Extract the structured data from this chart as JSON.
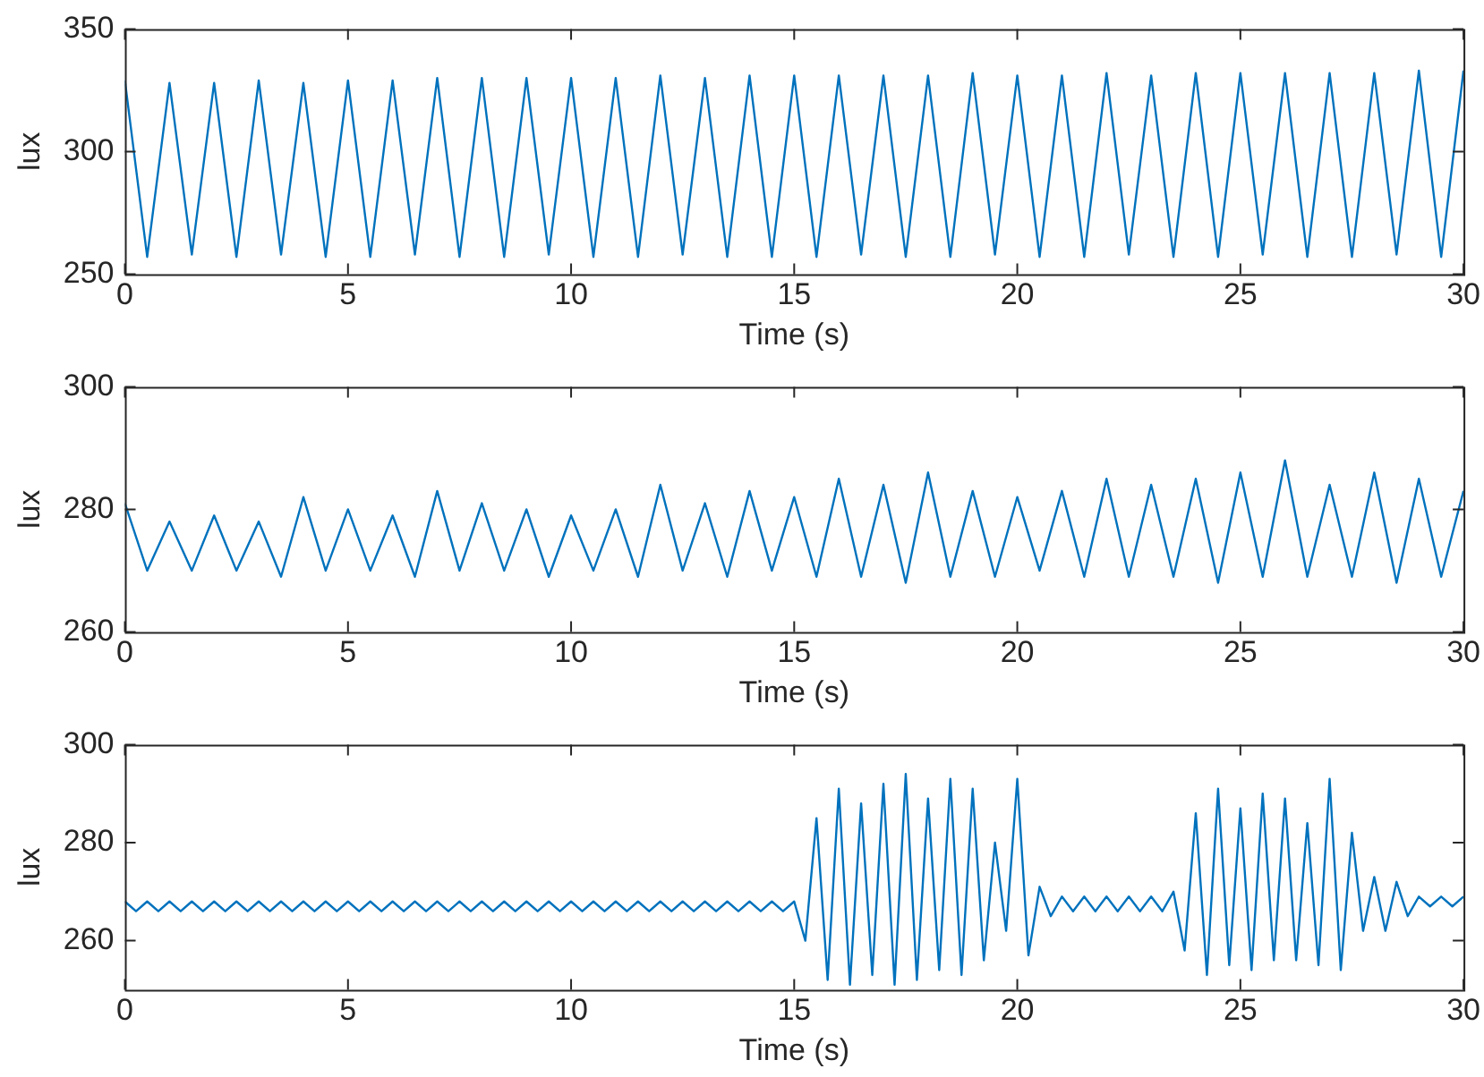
{
  "chart_data": [
    {
      "type": "line",
      "xlabel": "Time (s)",
      "ylabel": "lux",
      "color": "#0072bd",
      "marker": "none",
      "legend": false,
      "x": [
        0,
        0.5,
        1,
        1.5,
        2,
        2.5,
        3,
        3.5,
        4,
        4.5,
        5,
        5.5,
        6,
        6.5,
        7,
        7.5,
        8,
        8.5,
        9,
        9.5,
        10,
        10.5,
        11,
        11.5,
        12,
        12.5,
        13,
        13.5,
        14,
        14.5,
        15,
        15.5,
        16,
        16.5,
        17,
        17.5,
        18,
        18.5,
        19,
        19.5,
        20,
        20.5,
        21,
        21.5,
        22,
        22.5,
        23,
        23.5,
        24,
        24.5,
        25,
        25.5,
        26,
        26.5,
        27,
        27.5,
        28,
        28.5,
        29,
        29.5,
        30
      ],
      "values": [
        329,
        257,
        328,
        258,
        328,
        257,
        329,
        258,
        328,
        257,
        329,
        257,
        329,
        258,
        330,
        257,
        330,
        257,
        330,
        258,
        330,
        257,
        330,
        257,
        331,
        258,
        330,
        257,
        331,
        257,
        331,
        257,
        331,
        258,
        331,
        257,
        331,
        257,
        332,
        258,
        331,
        257,
        331,
        257,
        332,
        258,
        331,
        257,
        332,
        257,
        332,
        258,
        332,
        257,
        332,
        257,
        332,
        258,
        333,
        257,
        333
      ],
      "xlim": [
        0,
        30
      ],
      "xticks": [
        0,
        5,
        10,
        15,
        20,
        25,
        30
      ],
      "ylim": [
        250,
        350
      ],
      "yticks": [
        250,
        300,
        350
      ]
    },
    {
      "type": "line",
      "xlabel": "Time (s)",
      "ylabel": "lux",
      "color": "#0072bd",
      "marker": "none",
      "legend": false,
      "x": [
        0,
        0.5,
        1,
        1.5,
        2,
        2.5,
        3,
        3.5,
        4,
        4.5,
        5,
        5.5,
        6,
        6.5,
        7,
        7.5,
        8,
        8.5,
        9,
        9.5,
        10,
        10.5,
        11,
        11.5,
        12,
        12.5,
        13,
        13.5,
        14,
        14.5,
        15,
        15.5,
        16,
        16.5,
        17,
        17.5,
        18,
        18.5,
        19,
        19.5,
        20,
        20.5,
        21,
        21.5,
        22,
        22.5,
        23,
        23.5,
        24,
        24.5,
        25,
        25.5,
        26,
        26.5,
        27,
        27.5,
        28,
        28.5,
        29,
        29.5,
        30
      ],
      "values": [
        281,
        270,
        278,
        270,
        279,
        270,
        278,
        269,
        282,
        270,
        280,
        270,
        279,
        269,
        283,
        270,
        281,
        270,
        280,
        269,
        279,
        270,
        280,
        269,
        284,
        270,
        281,
        269,
        283,
        270,
        282,
        269,
        285,
        269,
        284,
        268,
        286,
        269,
        283,
        269,
        282,
        270,
        283,
        269,
        285,
        269,
        284,
        269,
        285,
        268,
        286,
        269,
        288,
        269,
        284,
        269,
        286,
        268,
        285,
        269,
        283
      ],
      "xlim": [
        0,
        30
      ],
      "xticks": [
        0,
        5,
        10,
        15,
        20,
        25,
        30
      ],
      "ylim": [
        260,
        300
      ],
      "yticks": [
        260,
        280,
        300
      ]
    },
    {
      "type": "line",
      "xlabel": "Time (s)",
      "ylabel": "lux",
      "color": "#0072bd",
      "marker": "none",
      "legend": false,
      "x": [
        0,
        0.25,
        0.5,
        0.75,
        1,
        1.25,
        1.5,
        1.75,
        2,
        2.25,
        2.5,
        2.75,
        3,
        3.25,
        3.5,
        3.75,
        4,
        4.25,
        4.5,
        4.75,
        5,
        5.25,
        5.5,
        5.75,
        6,
        6.25,
        6.5,
        6.75,
        7,
        7.25,
        7.5,
        7.75,
        8,
        8.25,
        8.5,
        8.75,
        9,
        9.25,
        9.5,
        9.75,
        10,
        10.25,
        10.5,
        10.75,
        11,
        11.25,
        11.5,
        11.75,
        12,
        12.25,
        12.5,
        12.75,
        13,
        13.25,
        13.5,
        13.75,
        14,
        14.25,
        14.5,
        14.75,
        15,
        15.25,
        15.5,
        15.75,
        16,
        16.25,
        16.5,
        16.75,
        17,
        17.25,
        17.5,
        17.75,
        18,
        18.25,
        18.5,
        18.75,
        19,
        19.25,
        19.5,
        19.75,
        20,
        20.25,
        20.5,
        20.75,
        21,
        21.25,
        21.5,
        21.75,
        22,
        22.25,
        22.5,
        22.75,
        23,
        23.25,
        23.5,
        23.75,
        24,
        24.25,
        24.5,
        24.75,
        25,
        25.25,
        25.5,
        25.75,
        26,
        26.25,
        26.5,
        26.75,
        27,
        27.25,
        27.5,
        27.75,
        28,
        28.25,
        28.5,
        28.75,
        29,
        29.25,
        29.5,
        29.75,
        30
      ],
      "values": [
        268,
        266,
        268,
        266,
        268,
        266,
        268,
        266,
        268,
        266,
        268,
        266,
        268,
        266,
        268,
        266,
        268,
        266,
        268,
        266,
        268,
        266,
        268,
        266,
        268,
        266,
        268,
        266,
        268,
        266,
        268,
        266,
        268,
        266,
        268,
        266,
        268,
        266,
        268,
        266,
        268,
        266,
        268,
        266,
        268,
        266,
        268,
        266,
        268,
        266,
        268,
        266,
        268,
        266,
        268,
        266,
        268,
        266,
        268,
        266,
        268,
        260,
        285,
        252,
        291,
        251,
        288,
        253,
        292,
        251,
        294,
        252,
        289,
        254,
        293,
        253,
        291,
        256,
        280,
        262,
        293,
        257,
        271,
        265,
        269,
        266,
        269,
        266,
        269,
        266,
        269,
        266,
        269,
        266,
        270,
        258,
        286,
        253,
        291,
        255,
        287,
        254,
        290,
        256,
        289,
        256,
        284,
        255,
        293,
        254,
        282,
        262,
        273,
        262,
        272,
        265,
        269,
        267,
        269,
        267,
        269
      ],
      "xlim": [
        0,
        30
      ],
      "xticks": [
        0,
        5,
        10,
        15,
        20,
        25,
        30
      ],
      "ylim": [
        250,
        300
      ],
      "yticks": [
        260,
        280,
        300
      ]
    }
  ]
}
